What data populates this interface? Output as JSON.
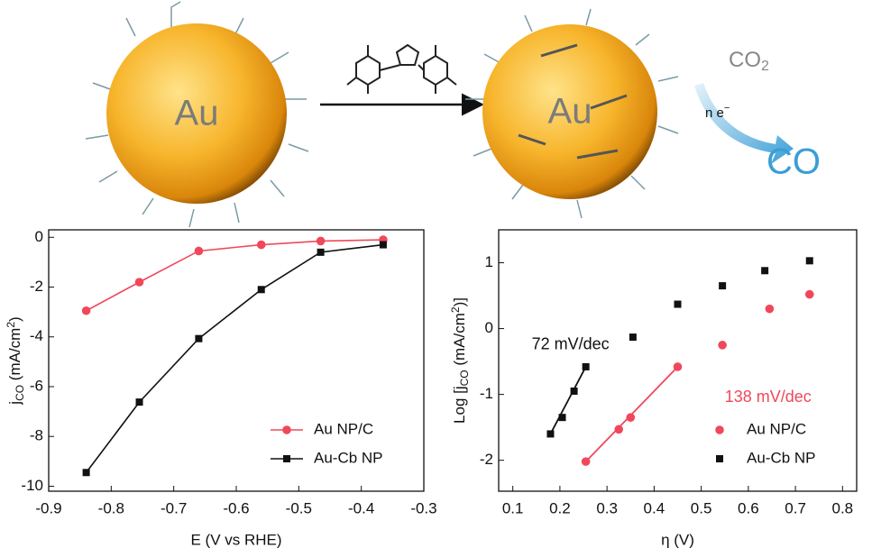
{
  "schematic": {
    "left_particle": "Au",
    "right_particle": "Au",
    "reactant": [
      "CO",
      "2"
    ],
    "electrons": [
      "n e",
      "−"
    ],
    "product": "CO"
  },
  "chart_data": [
    {
      "type": "line",
      "x_label": "E (V vs RHE)",
      "y_label": [
        "j",
        "CO",
        " (mA/cm",
        "2",
        ")"
      ],
      "x": [
        -0.84,
        -0.755,
        -0.66,
        -0.56,
        -0.465,
        -0.365
      ],
      "series": [
        {
          "name": "Au NP/C",
          "color": "#f0485a",
          "marker": "circle",
          "values": [
            -2.95,
            -1.8,
            -0.55,
            -0.3,
            -0.15,
            -0.1
          ]
        },
        {
          "name": "Au-Cb NP",
          "color": "#111111",
          "marker": "square",
          "values": [
            -9.45,
            -6.62,
            -4.07,
            -2.1,
            -0.6,
            -0.3
          ]
        }
      ],
      "xlim": [
        -0.9,
        -0.3
      ],
      "xticks": [
        -0.9,
        -0.8,
        -0.7,
        -0.6,
        -0.5,
        -0.4,
        -0.3
      ],
      "ylim": [
        -10.2,
        0.3
      ],
      "yticks": [
        -10,
        -8,
        -6,
        -4,
        -2,
        0
      ],
      "legend": "lower right"
    },
    {
      "type": "scatter",
      "x_label": "η (V)",
      "y_label": [
        "Log [j",
        "CO",
        " (mA/cm",
        "2",
        ")]"
      ],
      "series": [
        {
          "name": "Au NP/C",
          "color": "#f0485a",
          "marker": "circle",
          "x": [
            0.255,
            0.325,
            0.35,
            0.45,
            0.545,
            0.645,
            0.73
          ],
          "values": [
            -2.02,
            -1.53,
            -1.35,
            -0.58,
            -0.25,
            0.3,
            0.52
          ]
        },
        {
          "name": "Au-Cb NP",
          "color": "#111111",
          "marker": "square",
          "x": [
            0.18,
            0.205,
            0.23,
            0.255,
            0.355,
            0.45,
            0.545,
            0.635,
            0.73
          ],
          "values": [
            -1.6,
            -1.35,
            -0.95,
            -0.58,
            -0.13,
            0.37,
            0.65,
            0.88,
            1.03
          ]
        }
      ],
      "fit_lines": [
        {
          "color": "#f0485a",
          "x": [
            0.255,
            0.45
          ],
          "values": [
            -2.02,
            -0.58
          ]
        },
        {
          "color": "#111111",
          "x": [
            0.18,
            0.255
          ],
          "values": [
            -1.6,
            -0.58
          ]
        }
      ],
      "annotations": [
        {
          "text": "138 mV/dec",
          "color": "#f0485a",
          "x": 0.55,
          "y": -1.05
        },
        {
          "text": "72 mV/dec",
          "color": "#111111",
          "x": 0.14,
          "y": -0.25
        }
      ],
      "xlim": [
        0.07,
        0.83
      ],
      "xticks": [
        0.1,
        0.2,
        0.3,
        0.4,
        0.5,
        0.6,
        0.7,
        0.8
      ],
      "ylim": [
        -2.47,
        1.5
      ],
      "yticks": [
        -2,
        -1,
        0,
        1
      ],
      "legend": "lower right"
    }
  ]
}
